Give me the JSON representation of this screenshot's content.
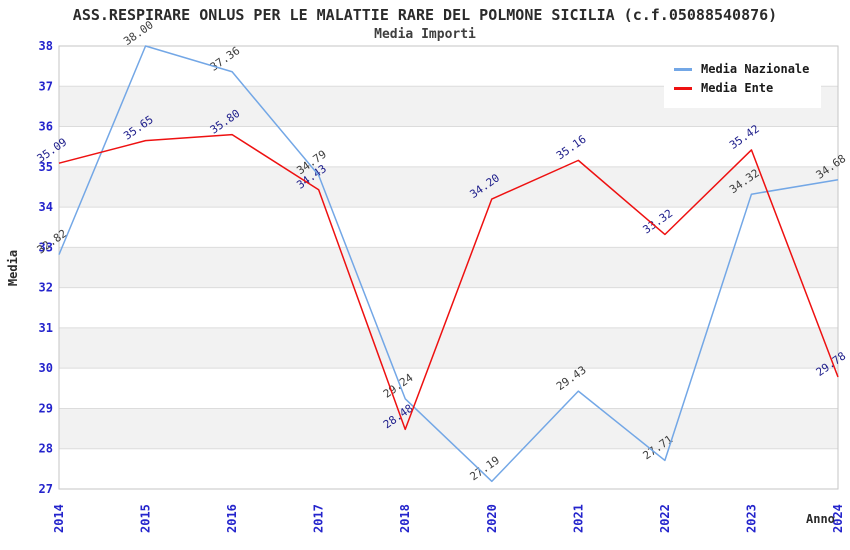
{
  "chart_data": {
    "type": "line",
    "title": "ASS.RESPIRARE ONLUS PER LE MALATTIE RARE DEL POLMONE SICILIA (c.f.05088540876)",
    "subtitle": "Media Importi",
    "xlabel": "Anno",
    "ylabel": "Media",
    "categories": [
      "2014",
      "2015",
      "2016",
      "2017",
      "2018",
      "2020",
      "2021",
      "2022",
      "2023",
      "2024"
    ],
    "series": [
      {
        "name": "Media Nazionale",
        "color": "#73A7E6",
        "label_color": "#3C3C3C",
        "values": [
          32.82,
          38.0,
          37.36,
          34.79,
          29.24,
          27.19,
          29.43,
          27.71,
          34.32,
          34.68
        ]
      },
      {
        "name": "Media Ente",
        "color": "#EE1111",
        "label_color": "#20208C",
        "values": [
          35.09,
          35.65,
          35.8,
          34.43,
          28.48,
          34.2,
          35.16,
          33.32,
          35.42,
          29.78
        ]
      }
    ],
    "ylim": [
      27,
      38
    ],
    "y_tick_step": 1,
    "value_label_decimals": 2,
    "grid": true,
    "legend_position": "top-right",
    "styles": {
      "tick_color": "#2424CC",
      "grid_color": "#DCDCDC",
      "border_color": "#C6C6C6",
      "band_color": "#F2F2F2",
      "background": "#FFFFFF"
    }
  }
}
